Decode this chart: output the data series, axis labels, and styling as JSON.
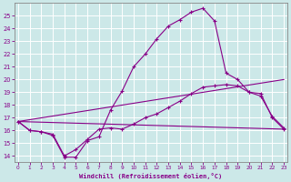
{
  "xlabel": "Windchill (Refroidissement éolien,°C)",
  "background_color": "#cce8e8",
  "grid_color": "#b8d8d8",
  "line_color": "#880088",
  "x_hours": [
    0,
    1,
    2,
    3,
    4,
    5,
    6,
    7,
    8,
    9,
    10,
    11,
    12,
    13,
    14,
    15,
    16,
    17,
    18,
    19,
    20,
    21,
    22,
    23
  ],
  "curve1": [
    16.7,
    16.0,
    15.9,
    15.6,
    13.9,
    13.9,
    15.2,
    15.5,
    17.6,
    19.1,
    21.0,
    22.0,
    23.2,
    24.2,
    24.7,
    25.3,
    25.6,
    24.6,
    20.5,
    20.0,
    19.0,
    18.7,
    17.1,
    16.2
  ],
  "curve2": [
    16.7,
    16.0,
    15.9,
    15.7,
    14.0,
    14.5,
    15.3,
    16.1,
    16.2,
    16.1,
    16.5,
    17.0,
    17.3,
    17.8,
    18.3,
    18.9,
    19.4,
    19.5,
    19.6,
    19.5,
    19.0,
    18.9,
    17.0,
    16.1
  ],
  "diag_upper": [
    16.7,
    20.0
  ],
  "diag_lower": [
    16.7,
    16.1
  ],
  "xlim": [
    -0.3,
    23.3
  ],
  "ylim": [
    13.5,
    26.0
  ],
  "yticks": [
    14,
    15,
    16,
    17,
    18,
    19,
    20,
    21,
    22,
    23,
    24,
    25
  ],
  "xticks": [
    0,
    1,
    2,
    3,
    4,
    5,
    6,
    7,
    8,
    9,
    10,
    11,
    12,
    13,
    14,
    15,
    16,
    17,
    18,
    19,
    20,
    21,
    22,
    23
  ]
}
